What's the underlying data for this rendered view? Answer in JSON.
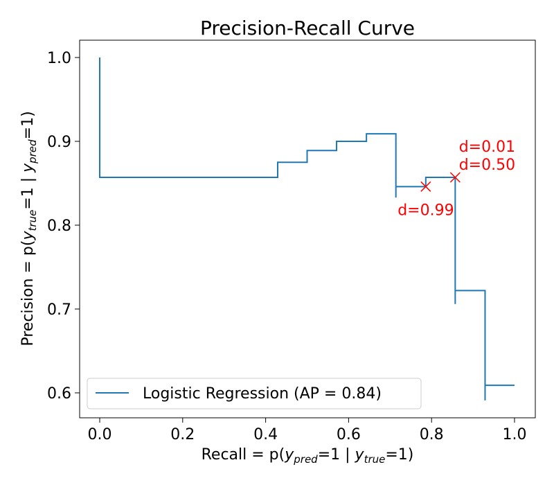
{
  "chart_data": {
    "type": "line",
    "title": "Precision-Recall Curve",
    "xlabel": "Recall = p(y_pred=1 | y_true=1)",
    "ylabel": "Precision = p(y_true=1 | y_pred=1)",
    "xlim": [
      -0.05,
      1.05
    ],
    "ylim": [
      0.573,
      1.021
    ],
    "xticks": [
      "0.0",
      "0.2",
      "0.4",
      "0.6",
      "0.8",
      "1.0"
    ],
    "yticks": [
      "0.6",
      "0.7",
      "0.8",
      "0.9",
      "1.0"
    ],
    "grid": false,
    "legend_position": "lower-left",
    "series": [
      {
        "name": "Logistic Regression (AP = 0.84)",
        "color": "#1f77b4",
        "drawstyle": "steps",
        "vertices": [
          [
            0,
            1.0
          ],
          [
            0,
            0.857
          ],
          [
            0.429,
            0.857
          ],
          [
            0.429,
            0.875
          ],
          [
            0.5,
            0.875
          ],
          [
            0.5,
            0.889
          ],
          [
            0.571,
            0.889
          ],
          [
            0.571,
            0.9
          ],
          [
            0.643,
            0.9
          ],
          [
            0.643,
            0.909
          ],
          [
            0.714,
            0.909
          ],
          [
            0.714,
            0.833
          ],
          [
            0.714,
            0.846
          ],
          [
            0.786,
            0.846
          ],
          [
            0.786,
            0.857
          ],
          [
            0.857,
            0.857
          ],
          [
            0.857,
            0.706
          ],
          [
            0.857,
            0.722
          ],
          [
            0.929,
            0.722
          ],
          [
            0.929,
            0.591
          ],
          [
            0.929,
            0.609
          ],
          [
            1.0,
            0.609
          ]
        ]
      }
    ],
    "markers": {
      "color": "#ff0000",
      "points": [
        [
          0.786,
          0.846
        ],
        [
          0.857,
          0.857
        ]
      ]
    },
    "annotations": [
      {
        "text": "d=0.99",
        "x": 0.795,
        "y": 0.855
      },
      {
        "text": "d=0.50",
        "x": 0.866,
        "y": 0.866
      },
      {
        "text": "d=0.01",
        "x": 0.866,
        "y": 0.866
      }
    ]
  }
}
